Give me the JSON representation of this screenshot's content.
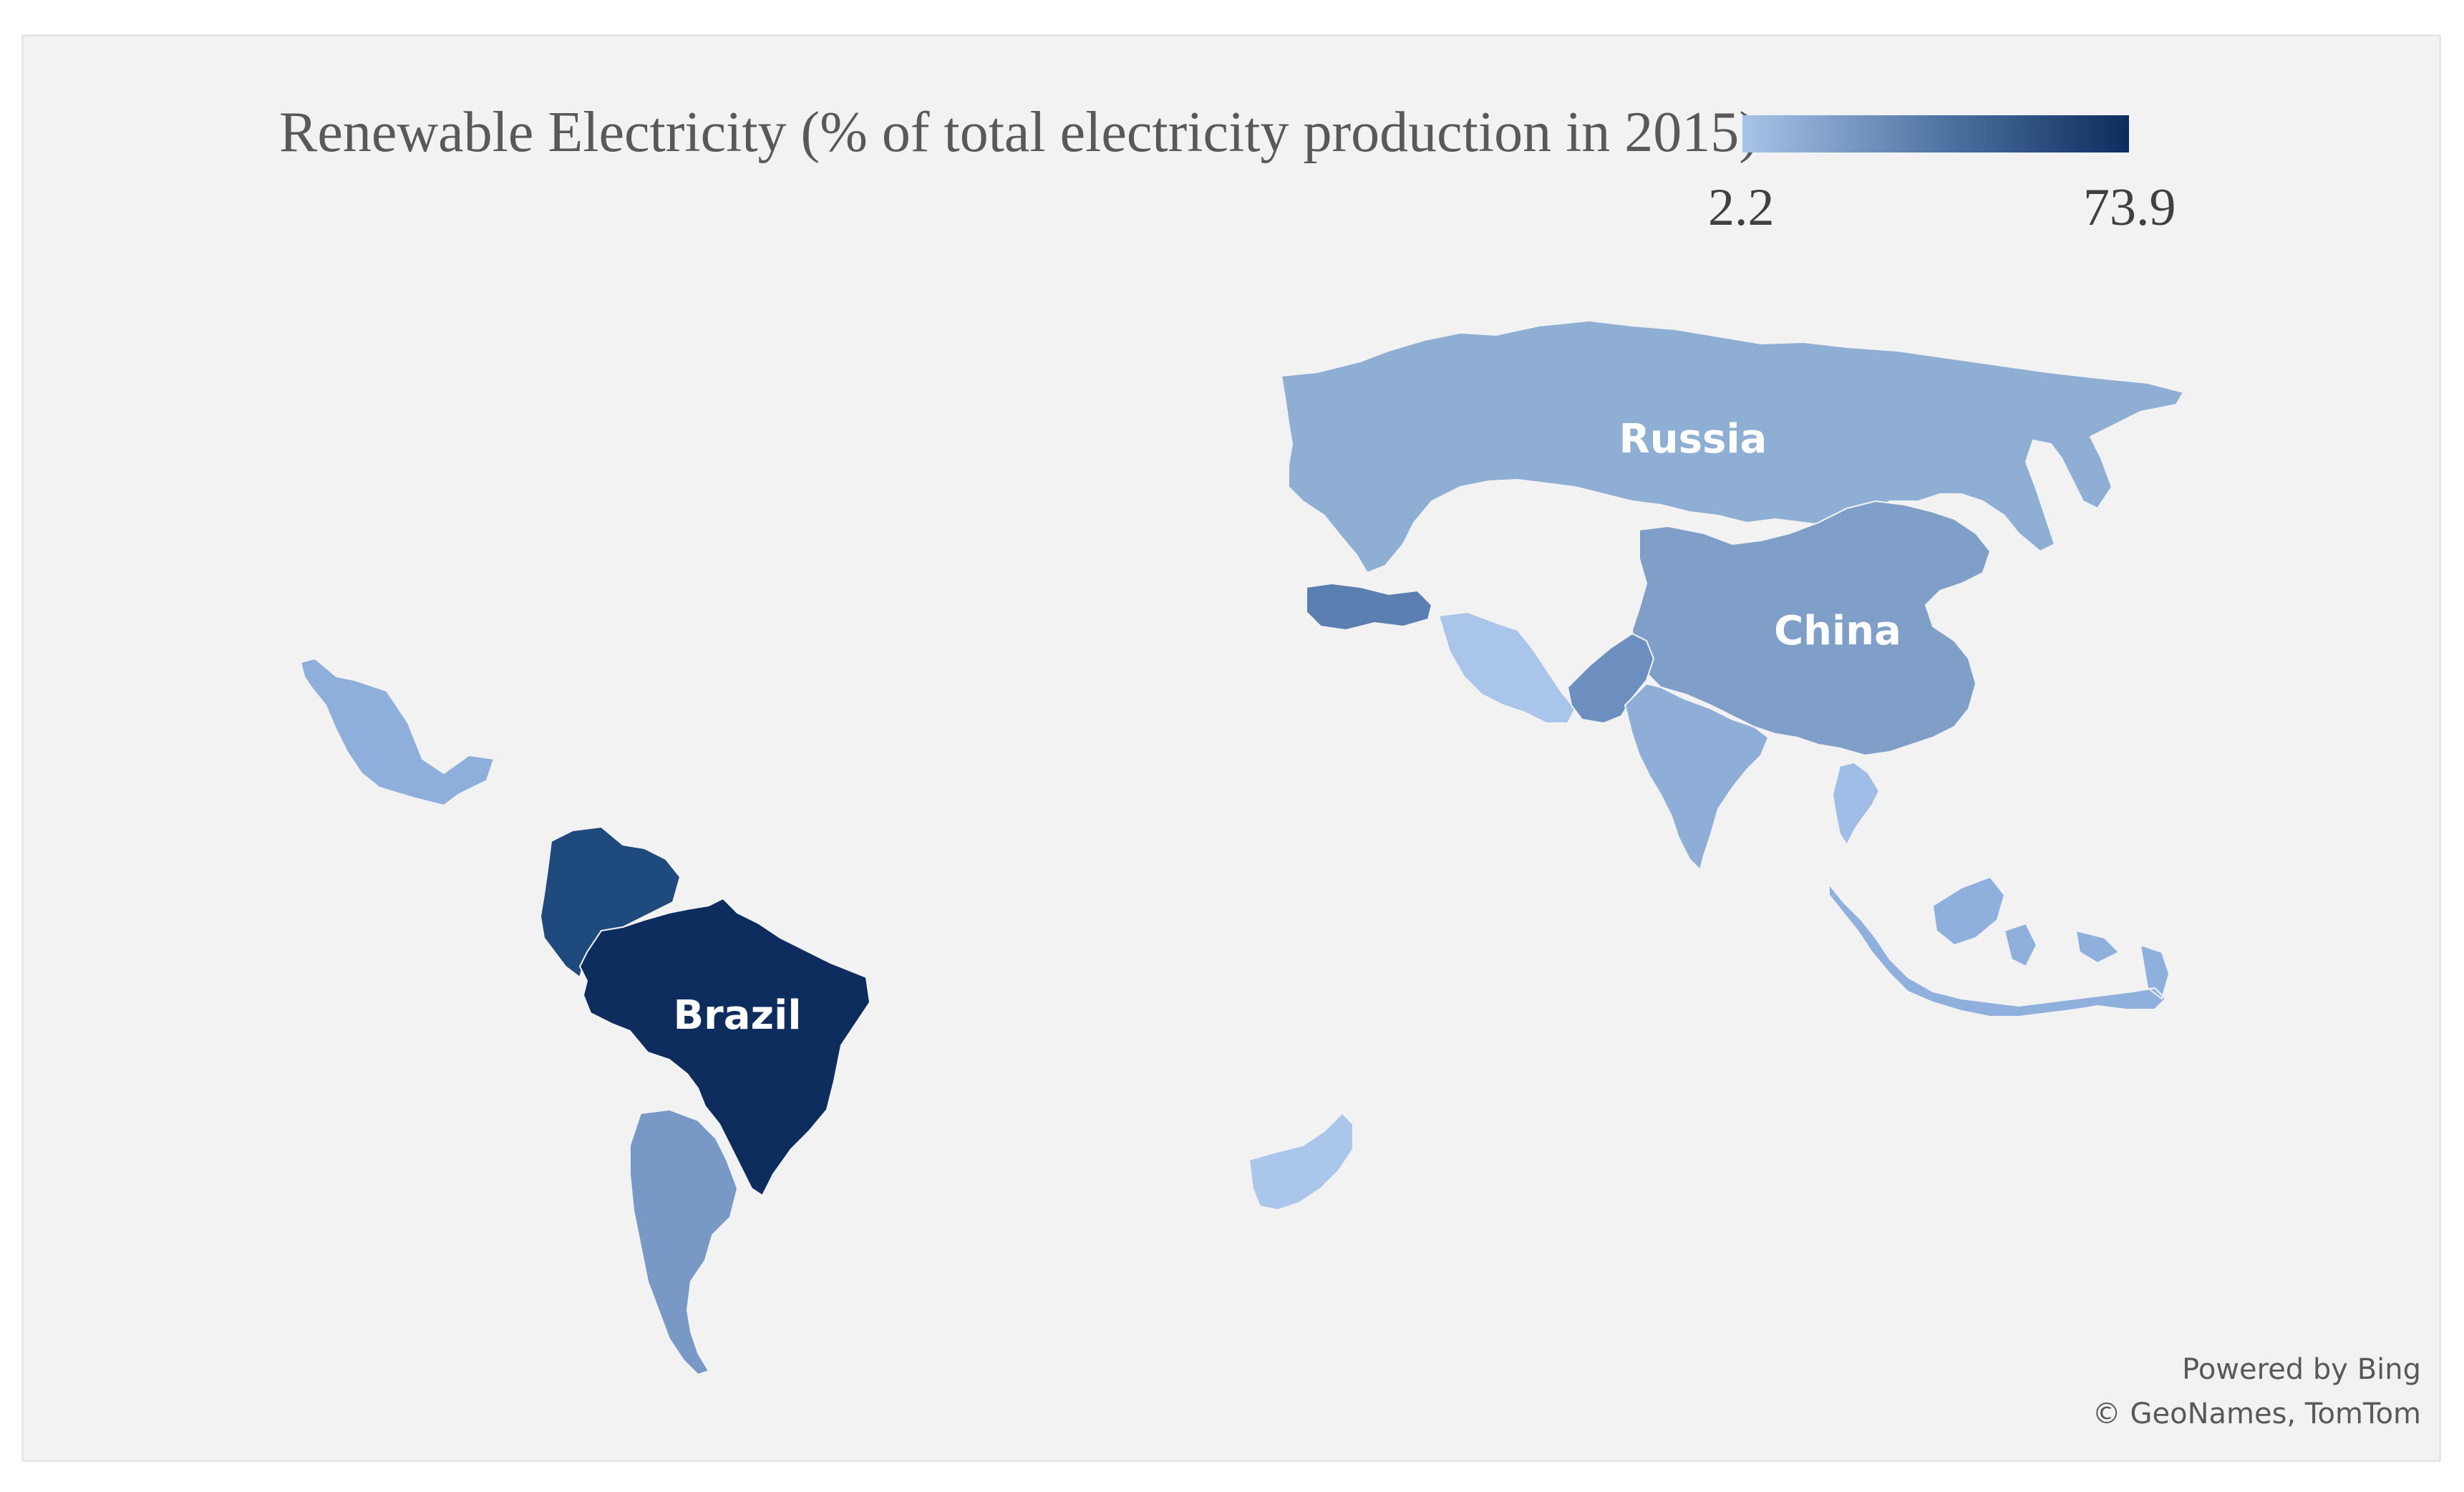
{
  "title": "Renewable Electricity (% of total electricity production in 2015)",
  "legend": {
    "min_label": "2.2",
    "max_label": "73.9",
    "color_low": "#a8c4e8",
    "color_high": "#0c2d5e"
  },
  "map_data": {
    "type": "choropleth",
    "labels": {
      "russia": "Russia",
      "china": "China",
      "brazil": "Brazil"
    },
    "regions": [
      {
        "id": "mexico",
        "color": "#8eaedb"
      },
      {
        "id": "colombia-venezuela",
        "color": "#1f4a7e"
      },
      {
        "id": "brazil",
        "color": "#0c2d5e"
      },
      {
        "id": "argentina",
        "color": "#7898c6"
      },
      {
        "id": "russia",
        "color": "#8eaed4"
      },
      {
        "id": "china",
        "color": "#7f9fc8"
      },
      {
        "id": "turkey",
        "color": "#5b7fb0"
      },
      {
        "id": "iran",
        "color": "#a9c5ea"
      },
      {
        "id": "pakistan",
        "color": "#6c8fc0"
      },
      {
        "id": "india",
        "color": "#8eaed8"
      },
      {
        "id": "thailand",
        "color": "#9fbde6"
      },
      {
        "id": "southeast-asia",
        "color": "#8fb0dd"
      },
      {
        "id": "south-africa",
        "color": "#aac6ea"
      }
    ]
  },
  "attribution": {
    "line1": "Powered by Bing",
    "line2": "© GeoNames, TomTom"
  }
}
